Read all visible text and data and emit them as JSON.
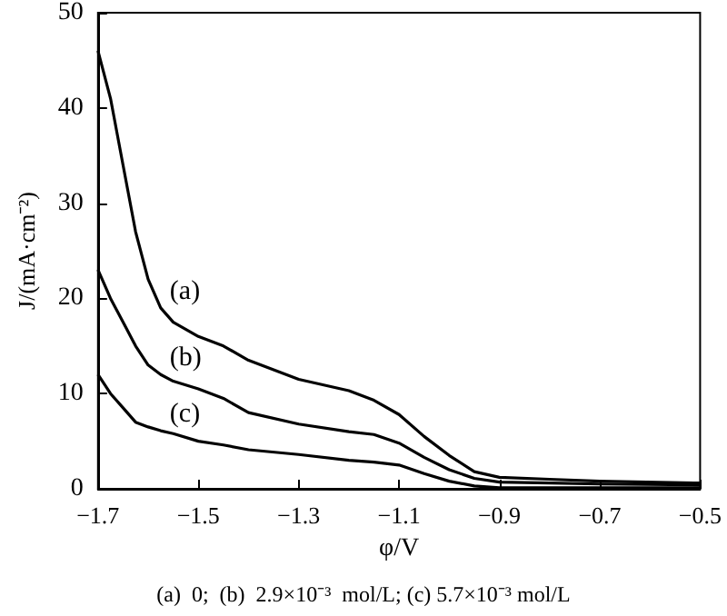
{
  "chart_data": {
    "type": "line",
    "xlabel": "φ/V",
    "ylabel": "J/(mA·cm⁻²)",
    "xlim": [
      -1.7,
      -0.5
    ],
    "xticks": [
      -1.7,
      -1.5,
      -1.3,
      -1.1,
      -0.9,
      -0.7,
      -0.5
    ],
    "ylim": [
      0,
      50
    ],
    "yticks": [
      0,
      10,
      20,
      30,
      40,
      50
    ],
    "grid": false,
    "marker": "none",
    "line_style": "solid",
    "x": [
      -1.7,
      -1.675,
      -1.65,
      -1.625,
      -1.6,
      -1.575,
      -1.55,
      -1.5,
      -1.45,
      -1.4,
      -1.3,
      -1.2,
      -1.15,
      -1.1,
      -1.05,
      -1.0,
      -0.95,
      -0.9,
      -0.8,
      -0.7,
      -0.5
    ],
    "series": [
      {
        "name": "(a)",
        "color": "#000000",
        "values": [
          46,
          41,
          34,
          27,
          22,
          19,
          17.5,
          16,
          15,
          13.5,
          11.5,
          10.3,
          9.3,
          7.8,
          5.5,
          3.5,
          1.8,
          1.2,
          1.0,
          0.8,
          0.6
        ]
      },
      {
        "name": "(b)",
        "color": "#000000",
        "values": [
          23,
          20,
          17.5,
          15,
          13,
          12,
          11.3,
          10.5,
          9.5,
          8,
          6.8,
          6,
          5.7,
          4.8,
          3.3,
          2,
          1.1,
          0.7,
          0.6,
          0.5,
          0.4
        ]
      },
      {
        "name": "(c)",
        "color": "#000000",
        "values": [
          12,
          10,
          8.5,
          7,
          6.5,
          6.1,
          5.8,
          5,
          4.6,
          4.1,
          3.6,
          3,
          2.8,
          2.5,
          1.6,
          0.8,
          0.3,
          0.1,
          0.1,
          0.1,
          0.1
        ]
      }
    ],
    "annotations": [
      "(a)  0;  (b)  2.9×10⁻³  mol/L; (c) 5.7×10⁻³ mol/L"
    ]
  }
}
